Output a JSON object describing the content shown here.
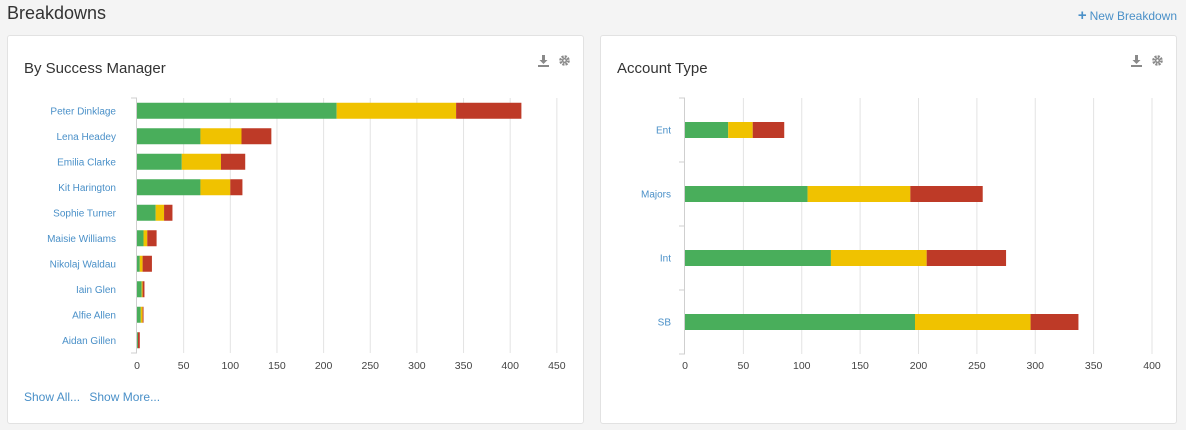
{
  "header": {
    "title": "Breakdowns",
    "new_breakdown_label": "New Breakdown"
  },
  "colors": {
    "green": "#49ae5b",
    "yellow": "#f0c200",
    "red": "#be3a27",
    "link": "#4a90c8"
  },
  "panels": [
    {
      "title": "By Success Manager",
      "links": [
        "Show All...",
        "Show More..."
      ],
      "icons": [
        "download-icon",
        "gear-icon"
      ]
    },
    {
      "title": "Account Type",
      "icons": [
        "download-icon",
        "gear-icon"
      ]
    }
  ],
  "chart_data": [
    {
      "type": "bar",
      "orientation": "horizontal",
      "stacked": true,
      "categories": [
        "Peter Dinklage",
        "Lena Headey",
        "Emilia Clarke",
        "Kit Harington",
        "Sophie Turner",
        "Maisie Williams",
        "Nikolaj Waldau",
        "Iain Glen",
        "Alfie Allen",
        "Aidan Gillen"
      ],
      "series": [
        {
          "color": "#49ae5b",
          "values": [
            214,
            68,
            48,
            68,
            20,
            7,
            3,
            5,
            4,
            1
          ]
        },
        {
          "color": "#f0c200",
          "values": [
            128,
            44,
            42,
            32,
            9,
            4,
            3,
            1,
            2,
            0
          ]
        },
        {
          "color": "#be3a27",
          "values": [
            70,
            32,
            26,
            13,
            9,
            10,
            10,
            2,
            1,
            2
          ]
        }
      ],
      "xlim": [
        0,
        450
      ],
      "xticks": [
        0,
        50,
        100,
        150,
        200,
        250,
        300,
        350,
        400,
        450
      ],
      "grid": true
    },
    {
      "type": "bar",
      "orientation": "horizontal",
      "stacked": true,
      "categories": [
        "Ent",
        "Majors",
        "Int",
        "SB"
      ],
      "series": [
        {
          "color": "#49ae5b",
          "values": [
            37,
            105,
            125,
            197
          ]
        },
        {
          "color": "#f0c200",
          "values": [
            21,
            88,
            82,
            99
          ]
        },
        {
          "color": "#be3a27",
          "values": [
            27,
            62,
            68,
            41
          ]
        }
      ],
      "xlim": [
        0,
        400
      ],
      "xticks": [
        0,
        50,
        100,
        150,
        200,
        250,
        300,
        350,
        400
      ],
      "grid": true
    }
  ]
}
